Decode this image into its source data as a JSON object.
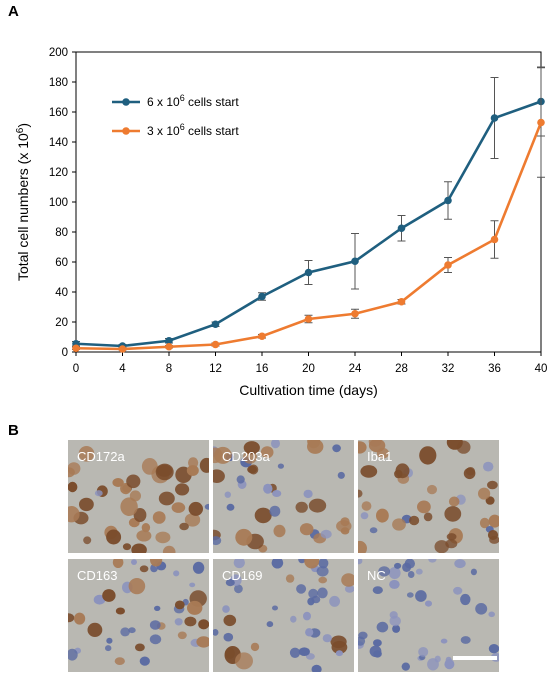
{
  "figure": {
    "panel_a_letter": "A",
    "panel_b_letter": "B"
  },
  "chart_data": {
    "type": "line",
    "x": [
      0,
      4,
      8,
      12,
      16,
      20,
      24,
      28,
      32,
      36,
      40
    ],
    "xlabel": "Cultivation time (days)",
    "ylabel_main": "Total cell numbers (x 10",
    "ylabel_sup": "6",
    "ylabel_end": ")",
    "xlim": [
      0,
      40
    ],
    "ylim": [
      0,
      200
    ],
    "yticks": [
      0,
      20,
      40,
      60,
      80,
      100,
      120,
      140,
      160,
      180,
      200
    ],
    "grid": false,
    "legend_placement": "top-left",
    "series": [
      {
        "name_main": "6 x 10",
        "name_sup": "6",
        "name_end": " cells start",
        "color": "#1f5f7f",
        "values": [
          5.5,
          4,
          7.5,
          18.5,
          37,
          53,
          60.5,
          82.5,
          101,
          156,
          167
        ],
        "errors": [
          1.5,
          1,
          1.5,
          1.5,
          2.5,
          8,
          18.5,
          8.5,
          12.5,
          27,
          23
        ]
      },
      {
        "name_main": "3 x 10",
        "name_sup": "6",
        "name_end": " cells start",
        "color": "#ee7b30",
        "values": [
          2.5,
          2,
          3.5,
          5,
          10.5,
          22,
          25.5,
          33.5,
          58,
          75,
          153
        ],
        "errors": [
          0.8,
          0.7,
          0.8,
          1,
          1.2,
          2.5,
          3,
          1.5,
          5,
          12.5,
          36.5
        ]
      }
    ]
  },
  "micrographs": {
    "tiles": [
      {
        "label": "CD172a",
        "stain": "strong"
      },
      {
        "label": "CD203a",
        "stain": "medium"
      },
      {
        "label": "Iba1",
        "stain": "strong"
      },
      {
        "label": "CD163",
        "stain": "medium"
      },
      {
        "label": "CD169",
        "stain": "weak"
      },
      {
        "label": "NC",
        "stain": "none"
      }
    ],
    "colors": {
      "background": "#b9b8b2",
      "brown": "#7a4c2c",
      "brown_light": "#a87a55",
      "blue": "#5a6aa2",
      "blue_light": "#8c93bd"
    }
  }
}
